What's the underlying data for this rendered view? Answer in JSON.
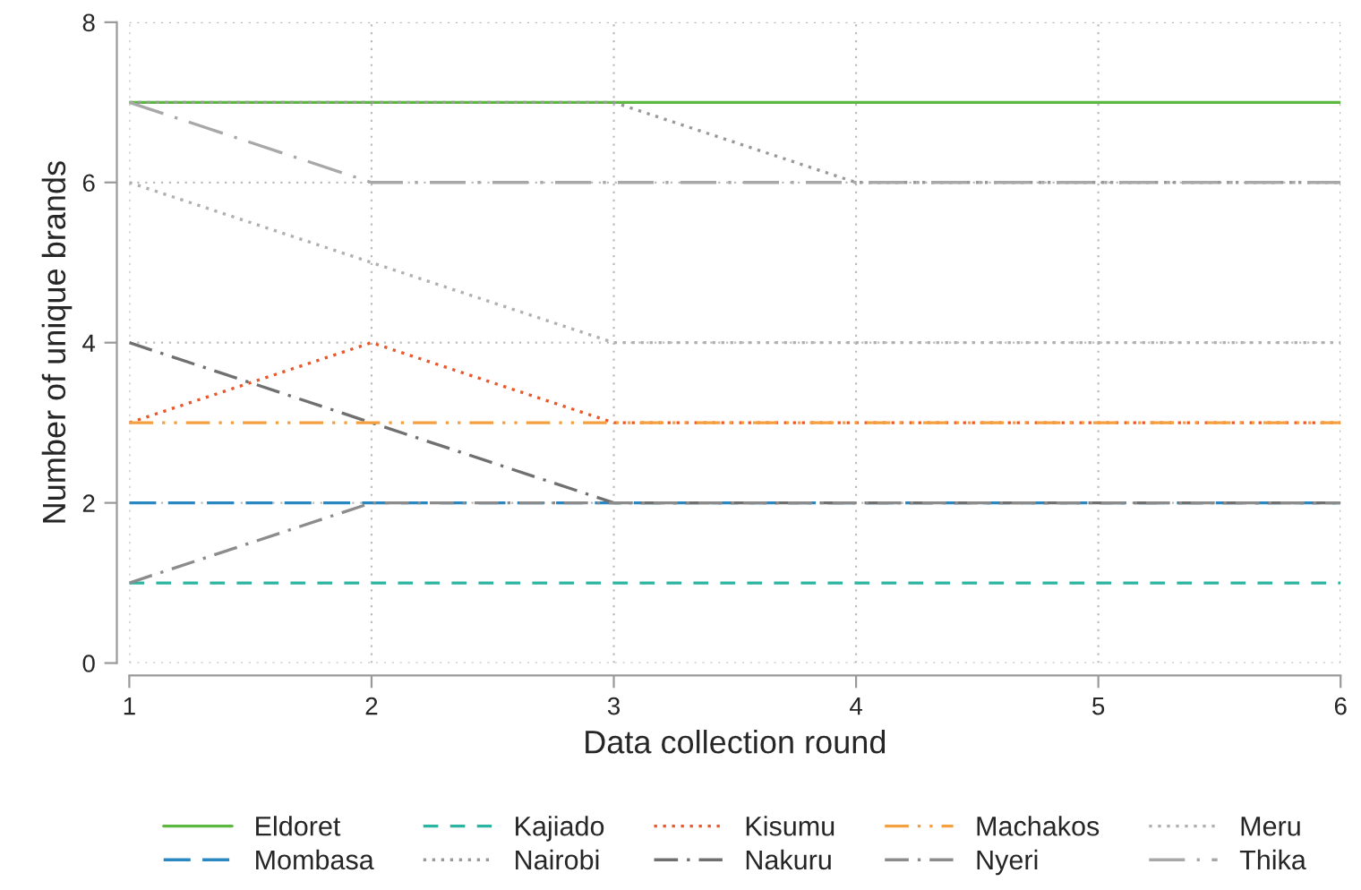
{
  "chart_data": {
    "type": "line",
    "xlabel": "Data collection round",
    "ylabel": "Number of unique brands",
    "x": [
      1,
      2,
      3,
      4,
      5,
      6
    ],
    "xlim": [
      1,
      6
    ],
    "xticks": [
      1,
      2,
      3,
      4,
      5,
      6
    ],
    "ylim": [
      0,
      8
    ],
    "yticks": [
      0,
      2,
      4,
      6,
      8
    ],
    "grid": true,
    "legend": "bottom",
    "marker": "none",
    "series": [
      {
        "name": "Eldoret",
        "color": "#5cb840",
        "line_style": "solid",
        "values": [
          7,
          7,
          7,
          7,
          7,
          7
        ]
      },
      {
        "name": "Mombasa",
        "color": "#2a87c0",
        "line_style": "longdash",
        "values": [
          2,
          2,
          2,
          2,
          2,
          2
        ]
      },
      {
        "name": "Kajiado",
        "color": "#2bb5a0",
        "line_style": "dashed",
        "values": [
          1,
          1,
          1,
          1,
          1,
          1
        ]
      },
      {
        "name": "Nairobi",
        "color": "#999999",
        "line_style": "dotted",
        "values": [
          7,
          7,
          7,
          6,
          6,
          6
        ]
      },
      {
        "name": "Kisumu",
        "color": "#e8582a",
        "line_style": "dotted",
        "values": [
          3,
          4,
          3,
          3,
          3,
          3
        ]
      },
      {
        "name": "Nakuru",
        "color": "#707070",
        "line_style": "dashdot",
        "values": [
          4,
          3,
          2,
          2,
          2,
          2
        ]
      },
      {
        "name": "Machakos",
        "color": "#f5a040",
        "line_style": "dashdotdot",
        "values": [
          3,
          3,
          3,
          3,
          3,
          3
        ]
      },
      {
        "name": "Nyeri",
        "color": "#8c8c8c",
        "line_style": "dashdot",
        "values": [
          1,
          2,
          2,
          2,
          2,
          2
        ]
      },
      {
        "name": "Meru",
        "color": "#b0b0b0",
        "line_style": "dotted",
        "values": [
          6,
          5,
          4,
          4,
          4,
          4
        ]
      },
      {
        "name": "Thika",
        "color": "#a8a8a8",
        "line_style": "longdashdot",
        "values": [
          7,
          6,
          6,
          6,
          6,
          6
        ]
      }
    ]
  }
}
